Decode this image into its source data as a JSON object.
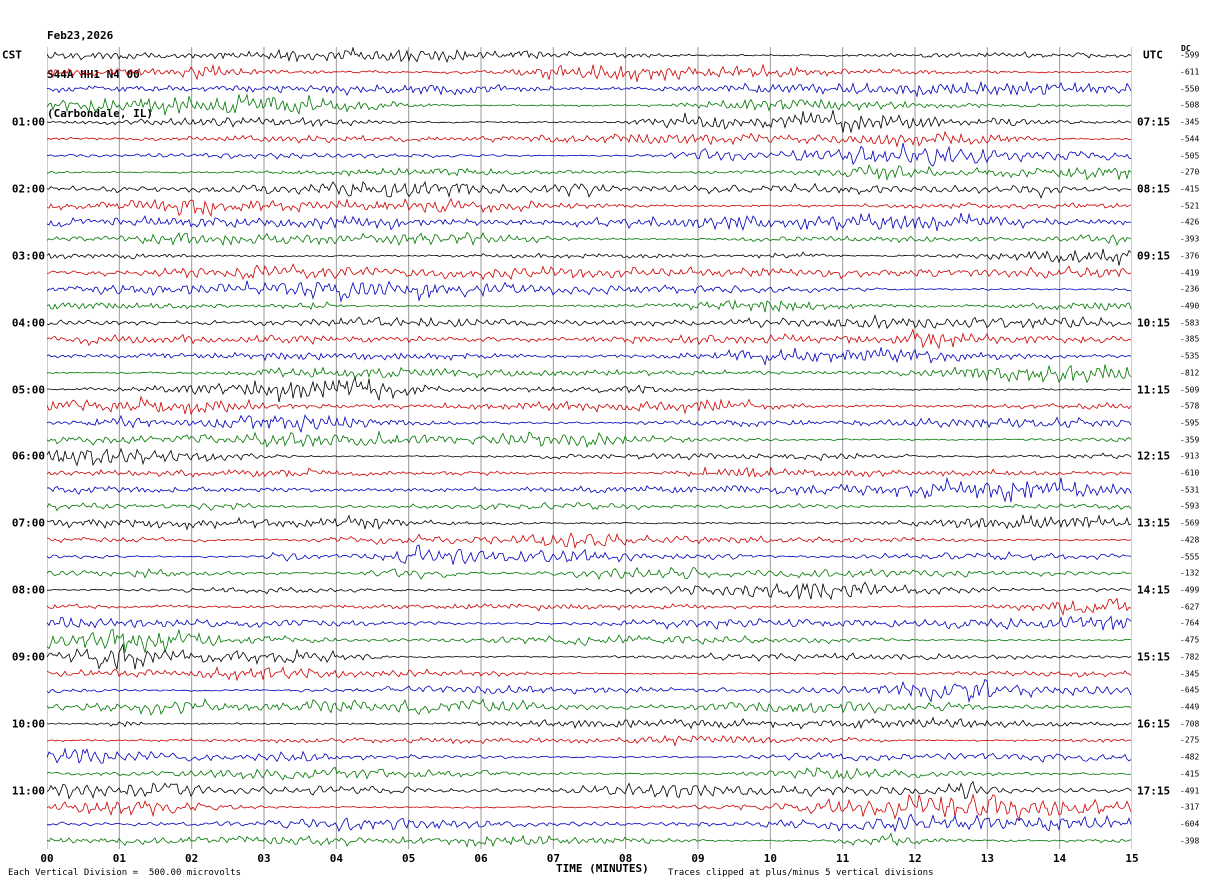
{
  "header": {
    "date": "Feb23,2026",
    "station": "S44A HH1 N4 00",
    "location": "(Carbondale, IL)"
  },
  "axes": {
    "left_tz": "CST",
    "right_tz": "UTC",
    "dc_label": "DC",
    "x_title": "TIME (MINUTES)",
    "x_ticks": [
      "00",
      "01",
      "02",
      "03",
      "04",
      "05",
      "06",
      "07",
      "08",
      "09",
      "10",
      "11",
      "12",
      "13",
      "14",
      "15"
    ]
  },
  "footer": {
    "left": "Each Vertical Division =  500.00 microvolts",
    "right": "Traces clipped at plus/minus 5 vertical divisions"
  },
  "chart_data": {
    "type": "line",
    "title": "Helicorder seismogram, station S44A HH1 N4 00, Carbondale IL, Feb23,2026",
    "x_range_minutes": [
      0,
      15
    ],
    "rows_per_hour": 4,
    "minutes_per_row": 15,
    "grid": "vertical lines at each minute",
    "trace_description": "continuous ambient seismic noise waveforms (one 15-minute trace per row, clipped at plus/minus 5 vertical divisions)",
    "colors": {
      "black": "#000000",
      "red": "#cc0000",
      "blue": "#0000bb",
      "green": "#007700"
    },
    "rows": [
      {
        "color": "black",
        "cst": "",
        "utc": "",
        "dc": -599
      },
      {
        "color": "red",
        "cst": "",
        "utc": "",
        "dc": -611
      },
      {
        "color": "blue",
        "cst": "",
        "utc": "",
        "dc": -550
      },
      {
        "color": "green",
        "cst": "",
        "utc": "",
        "dc": -508
      },
      {
        "color": "black",
        "cst": "01:00",
        "utc": "07:15",
        "dc": -345
      },
      {
        "color": "red",
        "cst": "",
        "utc": "",
        "dc": -544
      },
      {
        "color": "blue",
        "cst": "",
        "utc": "",
        "dc": -505
      },
      {
        "color": "green",
        "cst": "",
        "utc": "",
        "dc": -270
      },
      {
        "color": "black",
        "cst": "02:00",
        "utc": "08:15",
        "dc": -415
      },
      {
        "color": "red",
        "cst": "",
        "utc": "",
        "dc": -521
      },
      {
        "color": "blue",
        "cst": "",
        "utc": "",
        "dc": -426
      },
      {
        "color": "green",
        "cst": "",
        "utc": "",
        "dc": -393
      },
      {
        "color": "black",
        "cst": "03:00",
        "utc": "09:15",
        "dc": -376
      },
      {
        "color": "red",
        "cst": "",
        "utc": "",
        "dc": -419
      },
      {
        "color": "blue",
        "cst": "",
        "utc": "",
        "dc": -236
      },
      {
        "color": "green",
        "cst": "",
        "utc": "",
        "dc": -490
      },
      {
        "color": "black",
        "cst": "04:00",
        "utc": "10:15",
        "dc": -583
      },
      {
        "color": "red",
        "cst": "",
        "utc": "",
        "dc": -385
      },
      {
        "color": "blue",
        "cst": "",
        "utc": "",
        "dc": -535
      },
      {
        "color": "green",
        "cst": "",
        "utc": "",
        "dc": -812
      },
      {
        "color": "black",
        "cst": "05:00",
        "utc": "11:15",
        "dc": -509
      },
      {
        "color": "red",
        "cst": "",
        "utc": "",
        "dc": -578
      },
      {
        "color": "blue",
        "cst": "",
        "utc": "",
        "dc": -595
      },
      {
        "color": "green",
        "cst": "",
        "utc": "",
        "dc": -359
      },
      {
        "color": "black",
        "cst": "06:00",
        "utc": "12:15",
        "dc": -913
      },
      {
        "color": "red",
        "cst": "",
        "utc": "",
        "dc": -610
      },
      {
        "color": "blue",
        "cst": "",
        "utc": "",
        "dc": -531
      },
      {
        "color": "green",
        "cst": "",
        "utc": "",
        "dc": -593
      },
      {
        "color": "black",
        "cst": "07:00",
        "utc": "13:15",
        "dc": -569
      },
      {
        "color": "red",
        "cst": "",
        "utc": "",
        "dc": -428
      },
      {
        "color": "blue",
        "cst": "",
        "utc": "",
        "dc": -555
      },
      {
        "color": "green",
        "cst": "",
        "utc": "",
        "dc": -132
      },
      {
        "color": "black",
        "cst": "08:00",
        "utc": "14:15",
        "dc": -499
      },
      {
        "color": "red",
        "cst": "",
        "utc": "",
        "dc": -627
      },
      {
        "color": "blue",
        "cst": "",
        "utc": "",
        "dc": -764
      },
      {
        "color": "green",
        "cst": "",
        "utc": "",
        "dc": -475
      },
      {
        "color": "black",
        "cst": "09:00",
        "utc": "15:15",
        "dc": -782
      },
      {
        "color": "red",
        "cst": "",
        "utc": "",
        "dc": -345
      },
      {
        "color": "blue",
        "cst": "",
        "utc": "",
        "dc": -645
      },
      {
        "color": "green",
        "cst": "",
        "utc": "",
        "dc": -449
      },
      {
        "color": "black",
        "cst": "10:00",
        "utc": "16:15",
        "dc": -708
      },
      {
        "color": "red",
        "cst": "",
        "utc": "",
        "dc": -275
      },
      {
        "color": "blue",
        "cst": "",
        "utc": "",
        "dc": -482
      },
      {
        "color": "green",
        "cst": "",
        "utc": "",
        "dc": -415
      },
      {
        "color": "black",
        "cst": "11:00",
        "utc": "17:15",
        "dc": -491
      },
      {
        "color": "red",
        "cst": "",
        "utc": "",
        "dc": -317
      },
      {
        "color": "blue",
        "cst": "",
        "utc": "",
        "dc": -604
      },
      {
        "color": "green",
        "cst": "",
        "utc": "",
        "dc": -398
      }
    ]
  }
}
